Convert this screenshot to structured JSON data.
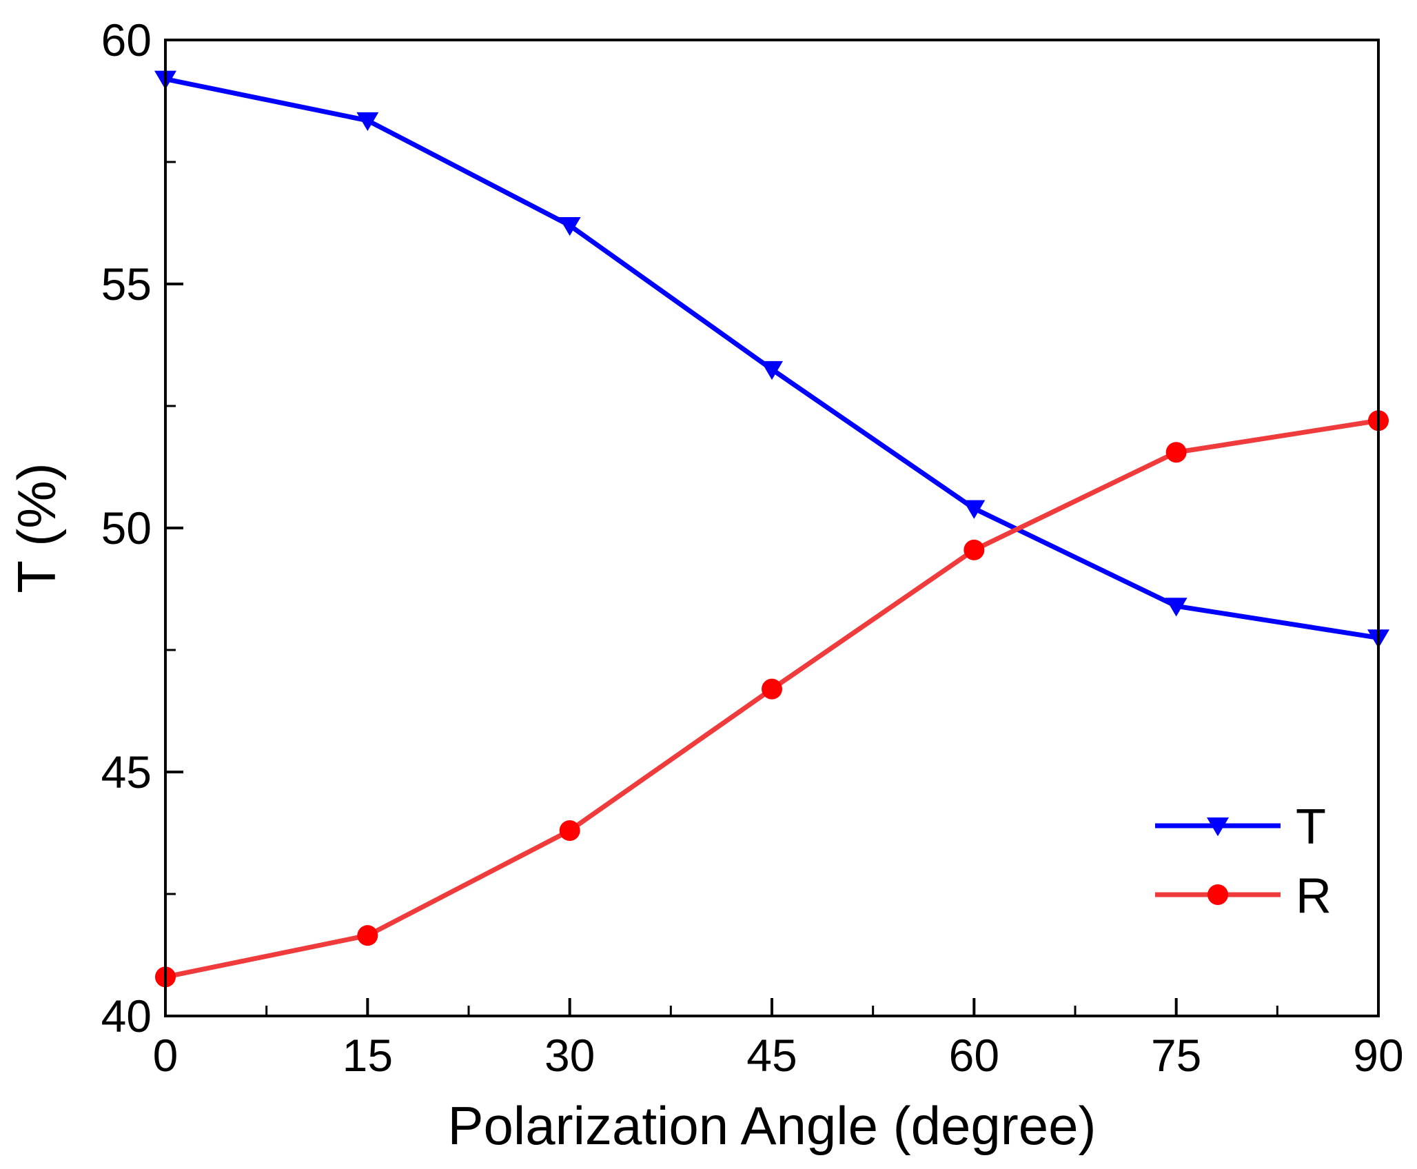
{
  "chart_data": {
    "type": "line",
    "title": "",
    "xlabel": "Polarization Angle (degree)",
    "ylabel": "T (%)",
    "x": [
      0,
      15,
      30,
      45,
      60,
      75,
      90
    ],
    "xlim": [
      0,
      90
    ],
    "ylim": [
      40,
      60
    ],
    "xticks": [
      0,
      15,
      30,
      45,
      60,
      75,
      90
    ],
    "yticks": [
      40,
      45,
      50,
      55,
      60
    ],
    "grid": false,
    "legend_position": "bottom-right",
    "series": [
      {
        "name": "T",
        "color": "#0000ff",
        "marker": "triangle-down",
        "values": [
          59.2,
          58.35,
          56.2,
          53.25,
          50.4,
          48.4,
          47.75
        ]
      },
      {
        "name": "R",
        "color": "#ef3b3b",
        "marker_color": "#ff0000",
        "marker": "circle",
        "values": [
          40.8,
          41.65,
          43.8,
          46.7,
          49.55,
          51.55,
          52.2
        ]
      }
    ]
  }
}
